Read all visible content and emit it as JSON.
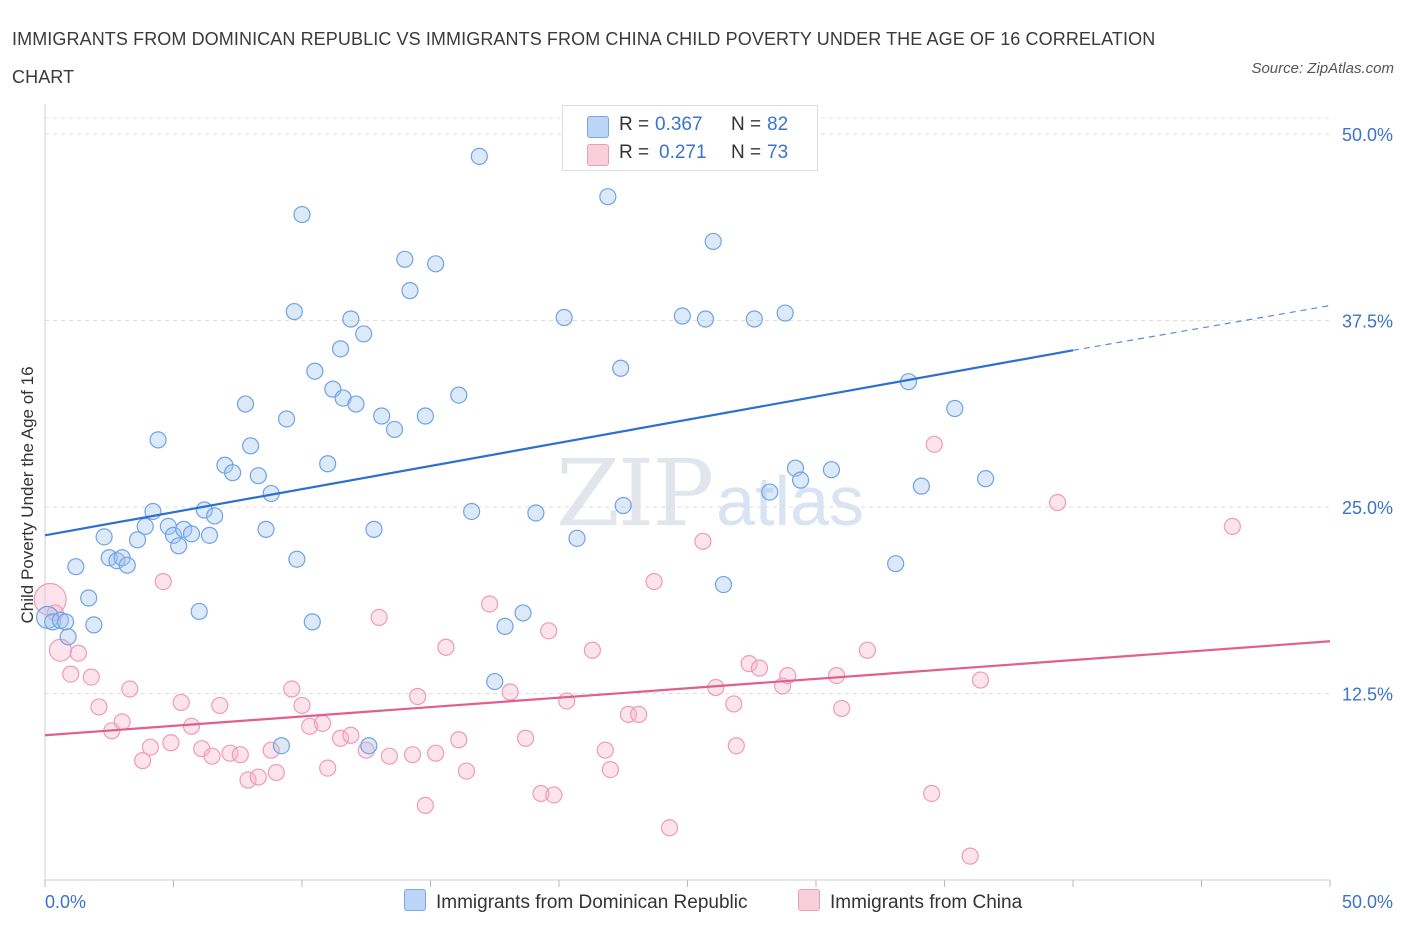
{
  "title": "IMMIGRANTS FROM DOMINICAN REPUBLIC VS IMMIGRANTS FROM CHINA CHILD POVERTY UNDER THE AGE OF 16 CORRELATION CHART",
  "source": "Source: ZipAtlas.com",
  "watermark": {
    "zip": "ZIP",
    "atlas": "atlas"
  },
  "legend_top": [
    {
      "r_label": "R =",
      "r_value": "0.367",
      "n_label": "N =",
      "n_value": "82"
    },
    {
      "r_label": "R =",
      "r_value": "0.271",
      "n_label": "N =",
      "n_value": "73"
    }
  ],
  "chart_data": {
    "type": "scatter",
    "title": "IMMIGRANTS FROM DOMINICAN REPUBLIC VS IMMIGRANTS FROM CHINA CHILD POVERTY UNDER THE AGE OF 16 CORRELATION CHART",
    "xlabel": "",
    "ylabel": "Child Poverty Under the Age of 16",
    "xlim": [
      0,
      50
    ],
    "ylim": [
      0,
      50
    ],
    "x_tick_labels": [
      "0.0%",
      "50.0%"
    ],
    "y_tick_labels": [
      "12.5%",
      "25.0%",
      "37.5%",
      "50.0%"
    ],
    "y_ticks": [
      12.5,
      25,
      37.5,
      50
    ],
    "grid": true,
    "colors": {
      "blue": "#6fa3e6",
      "blue_line": "#2f6fd0",
      "pink": "#ee8fae",
      "pink_line": "#e0608a",
      "tick_text": "#3b73c9"
    },
    "series": [
      {
        "name": "Immigrants from Dominican Republic",
        "color": "#6fa3e6",
        "trend": {
          "x0": 0,
          "y0": 23.1,
          "x1": 40,
          "y1": 35.5,
          "x_dash_end": 50,
          "y_dash_end": 38.5
        },
        "points": [
          [
            0.1,
            17.6
          ],
          [
            0.3,
            17.3
          ],
          [
            0.6,
            17.4
          ],
          [
            0.8,
            17.3
          ],
          [
            0.9,
            16.3
          ],
          [
            1.2,
            21.0
          ],
          [
            1.7,
            18.9
          ],
          [
            1.9,
            17.1
          ],
          [
            2.3,
            23.0
          ],
          [
            2.5,
            21.6
          ],
          [
            2.8,
            21.4
          ],
          [
            3.0,
            21.6
          ],
          [
            3.2,
            21.1
          ],
          [
            3.6,
            22.8
          ],
          [
            3.9,
            23.7
          ],
          [
            4.2,
            24.7
          ],
          [
            4.4,
            29.5
          ],
          [
            4.8,
            23.7
          ],
          [
            5.0,
            23.1
          ],
          [
            5.2,
            22.4
          ],
          [
            5.4,
            23.5
          ],
          [
            5.7,
            23.2
          ],
          [
            6.0,
            18.0
          ],
          [
            6.2,
            24.8
          ],
          [
            6.4,
            23.1
          ],
          [
            6.6,
            24.4
          ],
          [
            7.0,
            27.8
          ],
          [
            7.3,
            27.3
          ],
          [
            7.8,
            31.9
          ],
          [
            8.0,
            29.1
          ],
          [
            8.3,
            27.1
          ],
          [
            8.6,
            23.5
          ],
          [
            8.8,
            25.9
          ],
          [
            9.2,
            9.0
          ],
          [
            9.4,
            30.9
          ],
          [
            9.7,
            38.1
          ],
          [
            9.8,
            21.5
          ],
          [
            10.0,
            44.6
          ],
          [
            10.4,
            17.3
          ],
          [
            10.5,
            34.1
          ],
          [
            11.0,
            27.9
          ],
          [
            11.2,
            32.9
          ],
          [
            11.5,
            35.6
          ],
          [
            11.6,
            32.3
          ],
          [
            11.9,
            37.6
          ],
          [
            12.1,
            31.9
          ],
          [
            12.4,
            36.6
          ],
          [
            12.6,
            9.0
          ],
          [
            12.8,
            23.5
          ],
          [
            13.1,
            31.1
          ],
          [
            13.6,
            30.2
          ],
          [
            14.0,
            41.6
          ],
          [
            14.2,
            39.5
          ],
          [
            14.8,
            31.1
          ],
          [
            15.2,
            41.3
          ],
          [
            16.1,
            32.5
          ],
          [
            16.6,
            24.7
          ],
          [
            16.9,
            48.5
          ],
          [
            17.5,
            13.3
          ],
          [
            17.9,
            17.0
          ],
          [
            18.6,
            17.9
          ],
          [
            19.1,
            24.6
          ],
          [
            20.2,
            37.7
          ],
          [
            20.7,
            22.9
          ],
          [
            21.9,
            45.8
          ],
          [
            22.4,
            34.3
          ],
          [
            22.5,
            25.1
          ],
          [
            24.8,
            37.8
          ],
          [
            25.7,
            37.6
          ],
          [
            26.0,
            42.8
          ],
          [
            26.4,
            19.8
          ],
          [
            27.6,
            37.6
          ],
          [
            28.2,
            26.0
          ],
          [
            28.8,
            38.0
          ],
          [
            29.2,
            27.6
          ],
          [
            29.4,
            26.8
          ],
          [
            30.6,
            27.5
          ],
          [
            33.1,
            21.2
          ],
          [
            33.6,
            33.4
          ],
          [
            34.1,
            26.4
          ],
          [
            35.4,
            31.6
          ],
          [
            36.6,
            26.9
          ]
        ]
      },
      {
        "name": "Immigrants from China",
        "color": "#ee8fae",
        "trend": {
          "x0": 0,
          "y0": 9.7,
          "x1": 50,
          "y1": 16.0
        },
        "points": [
          [
            0.2,
            18.8
          ],
          [
            0.4,
            17.9
          ],
          [
            0.6,
            15.4
          ],
          [
            1.0,
            13.8
          ],
          [
            1.3,
            15.2
          ],
          [
            1.8,
            13.6
          ],
          [
            2.1,
            11.6
          ],
          [
            2.6,
            10.0
          ],
          [
            3.0,
            10.6
          ],
          [
            3.3,
            12.8
          ],
          [
            3.8,
            8.0
          ],
          [
            4.1,
            8.9
          ],
          [
            4.6,
            20.0
          ],
          [
            4.9,
            9.2
          ],
          [
            5.3,
            11.9
          ],
          [
            5.7,
            10.3
          ],
          [
            6.1,
            8.8
          ],
          [
            6.5,
            8.3
          ],
          [
            6.8,
            11.7
          ],
          [
            7.2,
            8.5
          ],
          [
            7.6,
            8.4
          ],
          [
            7.9,
            6.7
          ],
          [
            8.3,
            6.9
          ],
          [
            8.8,
            8.7
          ],
          [
            9.0,
            7.2
          ],
          [
            9.6,
            12.8
          ],
          [
            10.0,
            11.7
          ],
          [
            10.3,
            10.3
          ],
          [
            10.8,
            10.5
          ],
          [
            11.0,
            7.5
          ],
          [
            11.5,
            9.5
          ],
          [
            11.9,
            9.7
          ],
          [
            12.5,
            8.7
          ],
          [
            13.0,
            17.6
          ],
          [
            13.4,
            8.3
          ],
          [
            14.3,
            8.4
          ],
          [
            14.5,
            12.3
          ],
          [
            14.8,
            5.0
          ],
          [
            15.2,
            8.5
          ],
          [
            15.6,
            15.6
          ],
          [
            16.1,
            9.4
          ],
          [
            16.4,
            7.3
          ],
          [
            17.3,
            18.5
          ],
          [
            18.1,
            12.6
          ],
          [
            18.7,
            9.5
          ],
          [
            19.3,
            5.8
          ],
          [
            19.6,
            16.7
          ],
          [
            19.8,
            5.7
          ],
          [
            20.3,
            12.0
          ],
          [
            21.3,
            15.4
          ],
          [
            21.8,
            8.7
          ],
          [
            22.0,
            7.4
          ],
          [
            22.7,
            11.1
          ],
          [
            23.1,
            11.1
          ],
          [
            23.7,
            20.0
          ],
          [
            24.3,
            3.5
          ],
          [
            25.6,
            22.7
          ],
          [
            26.1,
            12.9
          ],
          [
            26.8,
            11.8
          ],
          [
            26.9,
            9.0
          ],
          [
            27.4,
            14.5
          ],
          [
            27.8,
            14.2
          ],
          [
            28.7,
            13.0
          ],
          [
            28.9,
            13.7
          ],
          [
            30.8,
            13.7
          ],
          [
            31.0,
            11.5
          ],
          [
            32.0,
            15.4
          ],
          [
            34.5,
            5.8
          ],
          [
            34.6,
            29.2
          ],
          [
            36.0,
            1.6
          ],
          [
            36.4,
            13.4
          ],
          [
            39.4,
            25.3
          ],
          [
            46.2,
            23.7
          ]
        ]
      }
    ]
  },
  "bottom_legend": [
    {
      "label": "Immigrants from Dominican Republic"
    },
    {
      "label": "Immigrants from China"
    }
  ]
}
